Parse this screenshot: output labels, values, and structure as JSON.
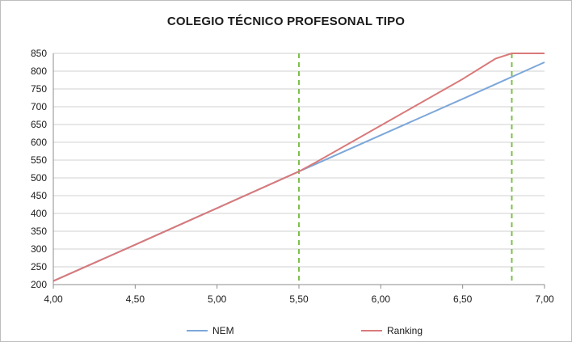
{
  "chart_data": {
    "type": "line",
    "title": "COLEGIO TÉCNICO PROFESONAL TIPO",
    "xlabel": "",
    "ylabel": "",
    "xlim": [
      4.0,
      7.0
    ],
    "ylim": [
      200,
      850
    ],
    "x_ticks": [
      "4,00",
      "4,50",
      "5,00",
      "5,50",
      "6,00",
      "6,50",
      "7,00"
    ],
    "x_tick_values": [
      4.0,
      4.5,
      5.0,
      5.5,
      6.0,
      6.5,
      7.0
    ],
    "y_ticks": [
      "200",
      "250",
      "300",
      "350",
      "400",
      "450",
      "500",
      "550",
      "600",
      "650",
      "700",
      "750",
      "800",
      "850"
    ],
    "y_tick_values": [
      200,
      250,
      300,
      350,
      400,
      450,
      500,
      550,
      600,
      650,
      700,
      750,
      800,
      850
    ],
    "grid": true,
    "legend_position": "bottom",
    "series": [
      {
        "name": "NEM",
        "color": "#7da7d9",
        "x": [
          4.0,
          4.5,
          5.0,
          5.5,
          6.0,
          6.5,
          7.0
        ],
        "y": [
          210,
          312,
          415,
          518,
          620,
          722,
          825
        ]
      },
      {
        "name": "Ranking",
        "color": "#d9797a",
        "x": [
          4.0,
          4.5,
          5.0,
          5.5,
          5.6,
          6.0,
          6.5,
          6.7,
          6.8,
          7.0
        ],
        "y": [
          210,
          312,
          415,
          518,
          543,
          647,
          778,
          835,
          850,
          850
        ]
      }
    ],
    "reference_lines": [
      {
        "x": 5.5,
        "color": "#7cc04b",
        "style": "dashed"
      },
      {
        "x": 6.8,
        "color": "#7cc04b",
        "style": "dashed"
      }
    ]
  }
}
